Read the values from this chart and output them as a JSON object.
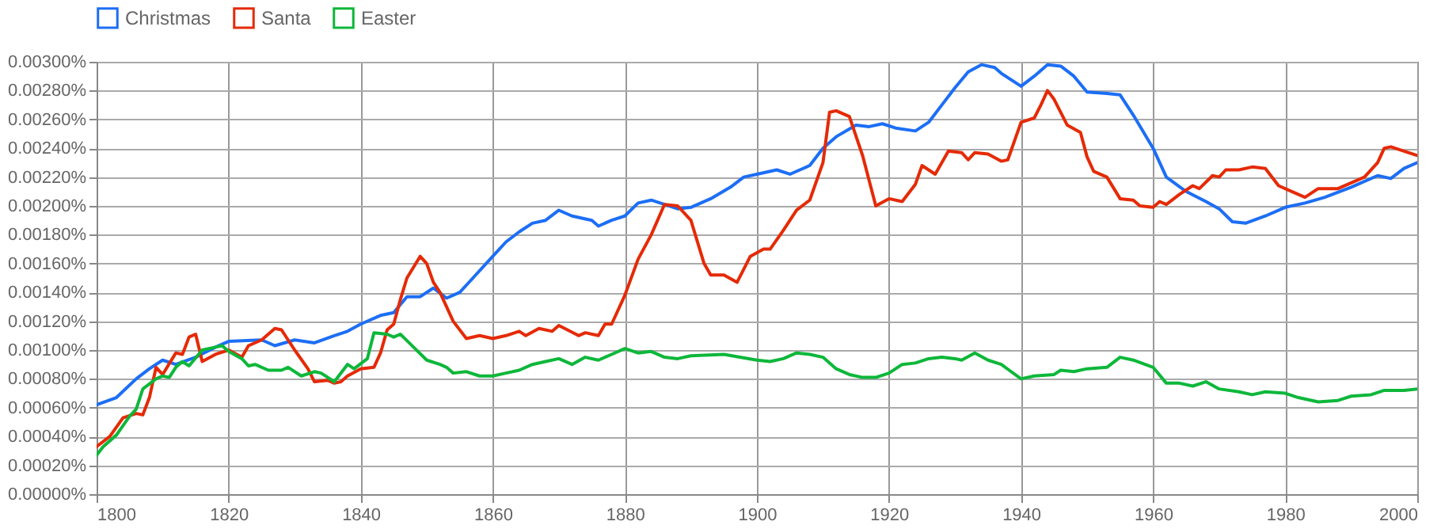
{
  "chart_data": {
    "type": "line",
    "legend": "top",
    "grid": true,
    "line_style": "solid",
    "marker": "none",
    "xlim": [
      1800,
      2000
    ],
    "xticks": [
      1800,
      1820,
      1840,
      1860,
      1880,
      1900,
      1920,
      1940,
      1960,
      1980,
      2000
    ],
    "ylim": [
      0,
      0.003
    ],
    "yticks": [
      {
        "value": 0,
        "label": "0.00000%"
      },
      {
        "value": 0.0002,
        "label": "0.00020%"
      },
      {
        "value": 0.0004,
        "label": "0.00040%"
      },
      {
        "value": 0.0006,
        "label": "0.00060%"
      },
      {
        "value": 0.0008,
        "label": "0.00080%"
      },
      {
        "value": 0.001,
        "label": "0.00100%"
      },
      {
        "value": 0.0012,
        "label": "0.00120%"
      },
      {
        "value": 0.0014,
        "label": "0.00140%"
      },
      {
        "value": 0.0016,
        "label": "0.00160%"
      },
      {
        "value": 0.0018,
        "label": "0.00180%"
      },
      {
        "value": 0.002,
        "label": "0.00200%"
      },
      {
        "value": 0.0022,
        "label": "0.00220%"
      },
      {
        "value": 0.0024,
        "label": "0.00240%"
      },
      {
        "value": 0.0026,
        "label": "0.00260%"
      },
      {
        "value": 0.0028,
        "label": "0.00280%"
      },
      {
        "value": 0.003,
        "label": "0.00300%"
      }
    ],
    "series": [
      {
        "name": "Christmas",
        "color": "#1c6ef5",
        "x": [
          1800,
          1803,
          1806,
          1808,
          1810,
          1812,
          1815,
          1818,
          1820,
          1825,
          1827,
          1830,
          1833,
          1836,
          1838,
          1840,
          1843,
          1845,
          1847,
          1849,
          1851,
          1853,
          1855,
          1857,
          1860,
          1862,
          1864,
          1866,
          1868,
          1870,
          1872,
          1875,
          1876,
          1878,
          1880,
          1882,
          1884,
          1886,
          1888,
          1890,
          1893,
          1896,
          1898,
          1900,
          1903,
          1905,
          1908,
          1910,
          1912,
          1915,
          1917,
          1919,
          1921,
          1924,
          1926,
          1928,
          1930,
          1932,
          1934,
          1936,
          1937,
          1940,
          1942,
          1944,
          1946,
          1948,
          1950,
          1953,
          1955,
          1957,
          1960,
          1962,
          1965,
          1968,
          1970,
          1972,
          1974,
          1977,
          1980,
          1983,
          1986,
          1990,
          1994,
          1996,
          1998,
          2000
        ],
        "values": [
          0.00062,
          0.00067,
          0.0008,
          0.00087,
          0.00093,
          0.0009,
          0.00095,
          0.00102,
          0.00106,
          0.00107,
          0.00103,
          0.00107,
          0.00105,
          0.0011,
          0.00113,
          0.00118,
          0.00124,
          0.00126,
          0.00137,
          0.00137,
          0.00143,
          0.00136,
          0.0014,
          0.0015,
          0.00165,
          0.00175,
          0.00182,
          0.00188,
          0.0019,
          0.00197,
          0.00193,
          0.0019,
          0.00186,
          0.0019,
          0.00193,
          0.00202,
          0.00204,
          0.00201,
          0.00198,
          0.00199,
          0.00205,
          0.00213,
          0.0022,
          0.00222,
          0.00225,
          0.00222,
          0.00228,
          0.0024,
          0.00248,
          0.00256,
          0.00255,
          0.00257,
          0.00254,
          0.00252,
          0.00258,
          0.0027,
          0.00282,
          0.00293,
          0.00298,
          0.00296,
          0.00292,
          0.00283,
          0.0029,
          0.00298,
          0.00297,
          0.0029,
          0.00279,
          0.00278,
          0.00277,
          0.00263,
          0.0024,
          0.0022,
          0.0021,
          0.00203,
          0.00198,
          0.00189,
          0.00188,
          0.00193,
          0.00199,
          0.00202,
          0.00206,
          0.00213,
          0.00221,
          0.00219,
          0.00226,
          0.0023
        ]
      },
      {
        "name": "Santa",
        "color": "#e52a06",
        "x": [
          1800,
          1802,
          1804,
          1806,
          1807,
          1808,
          1809,
          1810,
          1812,
          1813,
          1814,
          1815,
          1816,
          1818,
          1820,
          1822,
          1823,
          1825,
          1827,
          1828,
          1830,
          1832,
          1833,
          1835,
          1836,
          1837,
          1838,
          1840,
          1842,
          1843,
          1844,
          1845,
          1846,
          1847,
          1849,
          1850,
          1851,
          1852,
          1854,
          1856,
          1858,
          1860,
          1862,
          1864,
          1865,
          1867,
          1869,
          1870,
          1873,
          1874,
          1876,
          1877,
          1878,
          1880,
          1882,
          1884,
          1886,
          1888,
          1890,
          1892,
          1893,
          1895,
          1897,
          1899,
          1901,
          1902,
          1904,
          1906,
          1908,
          1910,
          1911,
          1912,
          1914,
          1916,
          1918,
          1920,
          1922,
          1924,
          1925,
          1927,
          1929,
          1931,
          1932,
          1933,
          1935,
          1937,
          1938,
          1940,
          1942,
          1943,
          1944,
          1945,
          1947,
          1949,
          1950,
          1951,
          1953,
          1955,
          1957,
          1958,
          1960,
          1961,
          1962,
          1964,
          1966,
          1967,
          1969,
          1970,
          1971,
          1973,
          1975,
          1977,
          1979,
          1981,
          1983,
          1985,
          1988,
          1990,
          1992,
          1994,
          1995,
          1996,
          1998,
          2000
        ],
        "values": [
          0.00033,
          0.0004,
          0.00053,
          0.00056,
          0.00055,
          0.00067,
          0.00088,
          0.00083,
          0.00098,
          0.00097,
          0.00109,
          0.00111,
          0.00092,
          0.00097,
          0.001,
          0.00095,
          0.00103,
          0.00107,
          0.00115,
          0.00114,
          0.001,
          0.00087,
          0.00078,
          0.00079,
          0.00077,
          0.00078,
          0.00082,
          0.00087,
          0.00088,
          0.00098,
          0.00114,
          0.00118,
          0.00135,
          0.0015,
          0.00165,
          0.0016,
          0.00147,
          0.0014,
          0.0012,
          0.00108,
          0.0011,
          0.00108,
          0.0011,
          0.00113,
          0.0011,
          0.00115,
          0.00113,
          0.00117,
          0.0011,
          0.00112,
          0.0011,
          0.00118,
          0.00118,
          0.00138,
          0.00163,
          0.0018,
          0.00201,
          0.002,
          0.0019,
          0.0016,
          0.00152,
          0.00152,
          0.00147,
          0.00165,
          0.0017,
          0.0017,
          0.00183,
          0.00197,
          0.00204,
          0.0023,
          0.00265,
          0.00266,
          0.00262,
          0.00235,
          0.002,
          0.00205,
          0.00203,
          0.00215,
          0.00228,
          0.00222,
          0.00238,
          0.00237,
          0.00232,
          0.00237,
          0.00236,
          0.00231,
          0.00232,
          0.00258,
          0.00261,
          0.0027,
          0.0028,
          0.00274,
          0.00256,
          0.00251,
          0.00234,
          0.00224,
          0.0022,
          0.00205,
          0.00204,
          0.002,
          0.00199,
          0.00203,
          0.00201,
          0.00208,
          0.00214,
          0.00212,
          0.00221,
          0.0022,
          0.00225,
          0.00225,
          0.00227,
          0.00226,
          0.00214,
          0.0021,
          0.00206,
          0.00212,
          0.00212,
          0.00216,
          0.0022,
          0.0023,
          0.0024,
          0.00241,
          0.00238,
          0.00235
        ]
      },
      {
        "name": "Easter",
        "color": "#0db73a",
        "x": [
          1800,
          1801,
          1803,
          1805,
          1806,
          1807,
          1809,
          1810,
          1811,
          1812,
          1813,
          1814,
          1816,
          1818,
          1819,
          1820,
          1822,
          1823,
          1824,
          1826,
          1828,
          1829,
          1831,
          1833,
          1834,
          1836,
          1838,
          1839,
          1841,
          1842,
          1844,
          1845,
          1846,
          1848,
          1850,
          1852,
          1853,
          1854,
          1856,
          1858,
          1860,
          1862,
          1864,
          1866,
          1868,
          1870,
          1872,
          1874,
          1876,
          1878,
          1880,
          1882,
          1884,
          1886,
          1888,
          1890,
          1895,
          1900,
          1902,
          1904,
          1906,
          1908,
          1910,
          1912,
          1914,
          1916,
          1918,
          1920,
          1922,
          1924,
          1926,
          1928,
          1930,
          1931,
          1933,
          1935,
          1937,
          1940,
          1942,
          1945,
          1946,
          1948,
          1950,
          1953,
          1955,
          1957,
          1960,
          1962,
          1964,
          1966,
          1968,
          1970,
          1973,
          1975,
          1977,
          1980,
          1982,
          1985,
          1988,
          1990,
          1993,
          1995,
          1998,
          2000
        ],
        "values": [
          0.00027,
          0.00033,
          0.00041,
          0.00054,
          0.00059,
          0.00073,
          0.0008,
          0.00082,
          0.00081,
          0.00088,
          0.00092,
          0.00089,
          0.001,
          0.00102,
          0.00103,
          0.00099,
          0.00094,
          0.00089,
          0.0009,
          0.00086,
          0.00086,
          0.00088,
          0.00082,
          0.00085,
          0.00084,
          0.00078,
          0.0009,
          0.00087,
          0.00094,
          0.00112,
          0.00111,
          0.00109,
          0.00111,
          0.00102,
          0.00093,
          0.0009,
          0.00088,
          0.00084,
          0.00085,
          0.00082,
          0.00082,
          0.00084,
          0.00086,
          0.0009,
          0.00092,
          0.00094,
          0.0009,
          0.00095,
          0.00093,
          0.00097,
          0.00101,
          0.00098,
          0.00099,
          0.00095,
          0.00094,
          0.00096,
          0.00097,
          0.00093,
          0.00092,
          0.00094,
          0.00098,
          0.00097,
          0.00095,
          0.00087,
          0.00083,
          0.00081,
          0.00081,
          0.00084,
          0.0009,
          0.00091,
          0.00094,
          0.00095,
          0.00094,
          0.00093,
          0.00098,
          0.00093,
          0.0009,
          0.0008,
          0.00082,
          0.00083,
          0.00086,
          0.00085,
          0.00087,
          0.00088,
          0.00095,
          0.00093,
          0.00088,
          0.00077,
          0.00077,
          0.00075,
          0.00078,
          0.00073,
          0.00071,
          0.00069,
          0.00071,
          0.0007,
          0.00067,
          0.00064,
          0.00065,
          0.00068,
          0.00069,
          0.00072,
          0.00072,
          0.00073
        ]
      }
    ]
  }
}
